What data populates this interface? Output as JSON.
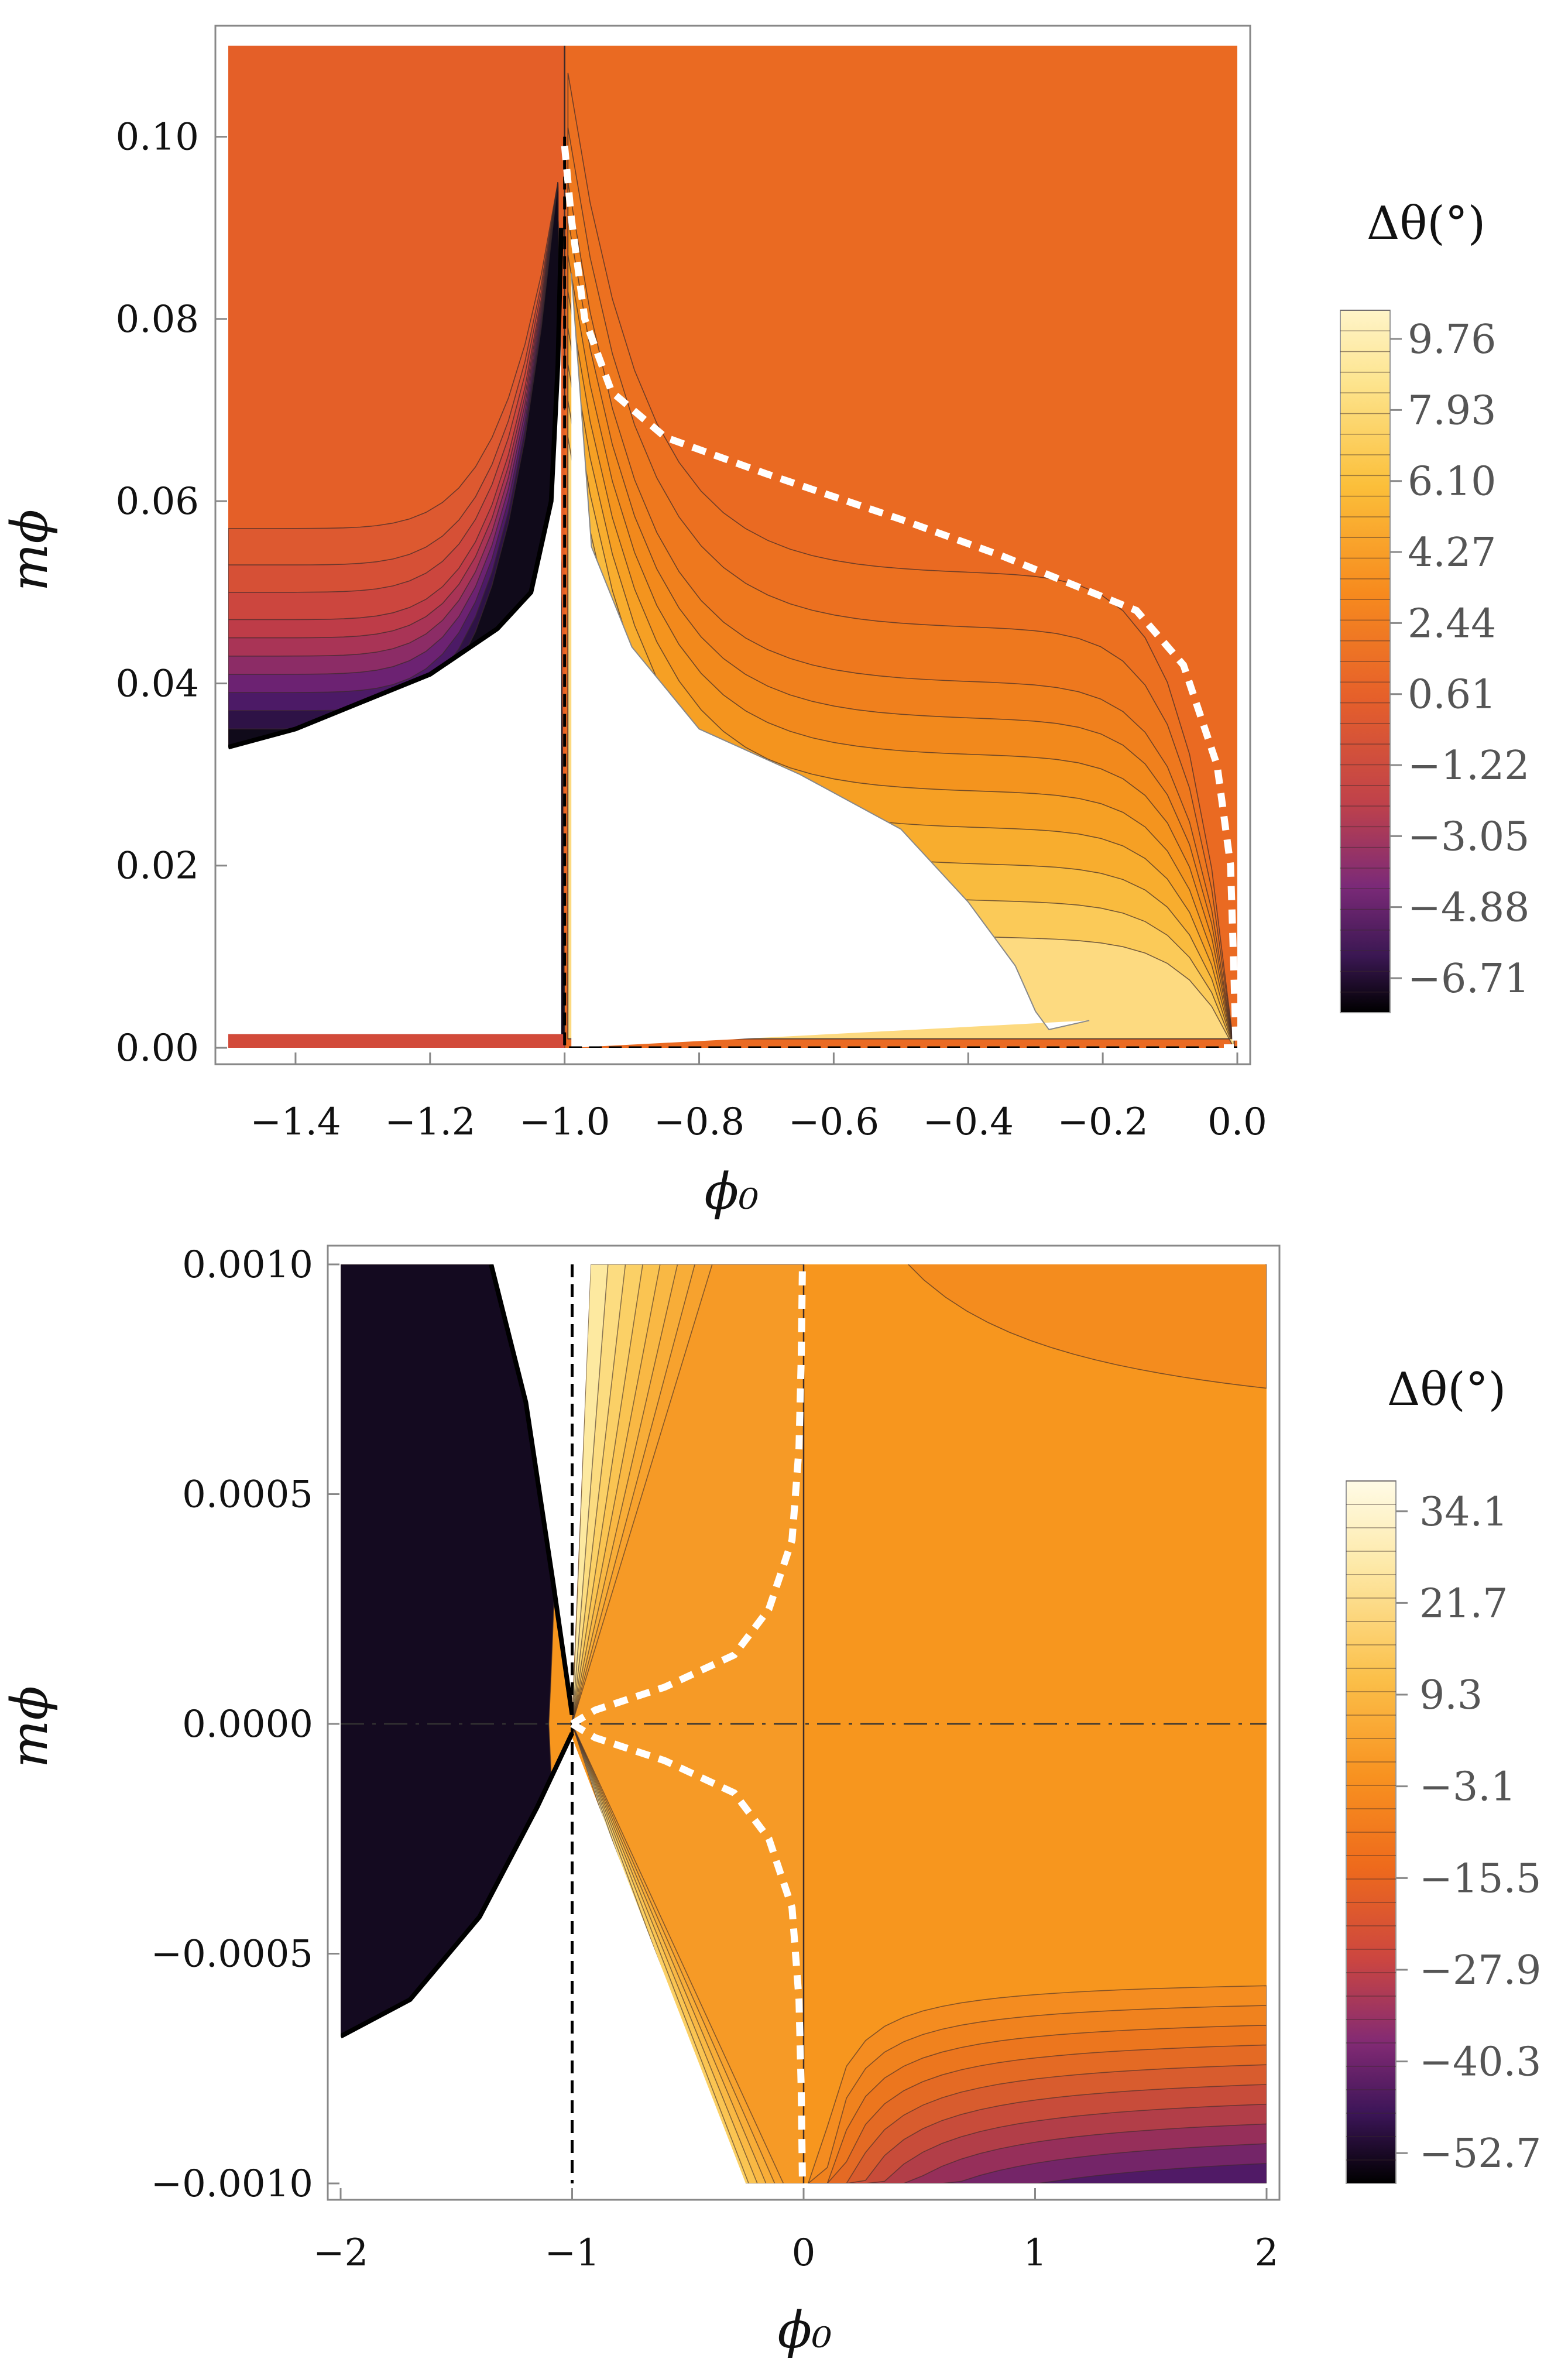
{
  "chart_data": [
    {
      "type": "contour",
      "title": "",
      "xlabel": "ϕ₀",
      "ylabel": "mϕ",
      "xlim": [
        -1.5,
        0.0
      ],
      "ylim": [
        0.0,
        0.11
      ],
      "xticks": [
        -1.4,
        -1.2,
        -1.0,
        -0.8,
        -0.6,
        -0.4,
        -0.2,
        0.0
      ],
      "xtick_labels": [
        "−1.4",
        "−1.2",
        "−1.0",
        "−0.8",
        "−0.6",
        "−0.4",
        "−0.2",
        "0.0"
      ],
      "yticks": [
        0.0,
        0.02,
        0.04,
        0.06,
        0.08,
        0.1
      ],
      "ytick_labels": [
        "0.00",
        "0.02",
        "0.04",
        "0.06",
        "0.08",
        "0.10"
      ],
      "colorbar": {
        "title": "Δθ(°)",
        "range": [
          -7.6,
          10.5
        ],
        "ticks": [
          9.76,
          7.93,
          6.1,
          4.27,
          2.44,
          0.61,
          -1.22,
          -3.05,
          -4.88,
          -6.71
        ],
        "tick_labels": [
          "9.76",
          "7.93",
          "6.10",
          "4.27",
          "2.44",
          "0.61",
          "−1.22",
          "−3.05",
          "−4.88",
          "−6.71"
        ]
      },
      "white_dashed_curve": [
        [
          -1.0,
          0.099
        ],
        [
          -0.99,
          0.091
        ],
        [
          -0.97,
          0.08
        ],
        [
          -0.93,
          0.072
        ],
        [
          -0.85,
          0.067
        ],
        [
          -0.7,
          0.063
        ],
        [
          -0.5,
          0.058
        ],
        [
          -0.35,
          0.054
        ],
        [
          -0.25,
          0.051
        ],
        [
          -0.15,
          0.048
        ],
        [
          -0.08,
          0.042
        ],
        [
          -0.03,
          0.031
        ],
        [
          -0.01,
          0.02
        ],
        [
          -0.005,
          0.008
        ],
        [
          -0.002,
          0.0
        ],
        [
          -0.02,
          0.0
        ]
      ],
      "black_dashed_line": [
        [
          -1.0,
          0.1
        ],
        [
          -1.0,
          0.0
        ],
        [
          0.0,
          0.0
        ]
      ],
      "white_region_boundary": [
        [
          -0.99,
          0.085
        ],
        [
          -0.96,
          0.055
        ],
        [
          -0.9,
          0.044
        ],
        [
          -0.8,
          0.035
        ],
        [
          -0.65,
          0.03
        ],
        [
          -0.5,
          0.024
        ],
        [
          -0.4,
          0.016
        ],
        [
          -0.33,
          0.009
        ],
        [
          -0.3,
          0.004
        ],
        [
          -0.28,
          0.002
        ],
        [
          -0.22,
          0.003
        ],
        [
          -0.99,
          0.0
        ]
      ],
      "left_white_boundary": [
        [
          -1.5,
          0.033
        ],
        [
          -1.4,
          0.035
        ],
        [
          -1.3,
          0.038
        ],
        [
          -1.2,
          0.041
        ],
        [
          -1.1,
          0.046
        ],
        [
          -1.05,
          0.05
        ],
        [
          -1.02,
          0.06
        ],
        [
          -1.01,
          0.075
        ],
        [
          -1.005,
          0.09
        ]
      ],
      "levels_upper_left": [
        0.057,
        0.053,
        0.05,
        0.047,
        0.045,
        0.043,
        0.041,
        0.039,
        0.037,
        0.035
      ],
      "levels_right": [
        0.012,
        0.016,
        0.02,
        0.024,
        0.028,
        0.032,
        0.036,
        0.04,
        0.046,
        0.052
      ]
    },
    {
      "type": "contour",
      "title": "",
      "xlabel": "ϕ₀",
      "ylabel": "mϕ",
      "xlim": [
        -2.0,
        2.0
      ],
      "ylim": [
        -0.001,
        0.001
      ],
      "xticks": [
        -2,
        -1,
        0,
        1,
        2
      ],
      "xtick_labels": [
        "−2",
        "−1",
        "0",
        "1",
        "2"
      ],
      "yticks": [
        -0.001,
        -0.0005,
        0.0,
        0.0005,
        0.001
      ],
      "ytick_labels": [
        "−0.0010",
        "−0.0005",
        "0.0000",
        "0.0005",
        "0.0010"
      ],
      "colorbar": {
        "title": "Δθ(°)",
        "range": [
          -56.8,
          38.2
        ],
        "ticks": [
          34.1,
          21.7,
          9.3,
          -3.1,
          -15.5,
          -27.9,
          -40.3,
          -52.7
        ],
        "tick_labels": [
          "34.1",
          "21.7",
          "9.3",
          "−3.1",
          "−15.5",
          "−27.9",
          "−40.3",
          "−52.7"
        ]
      },
      "white_dashed_curve_upper": [
        [
          -1.0,
          0.0
        ],
        [
          -0.9,
          3e-05
        ],
        [
          -0.6,
          8e-05
        ],
        [
          -0.3,
          0.00015
        ],
        [
          -0.15,
          0.00025
        ],
        [
          -0.05,
          0.0004
        ],
        [
          -0.02,
          0.0006
        ],
        [
          -0.01,
          0.0008
        ],
        [
          -0.005,
          0.001
        ]
      ],
      "white_dashed_curve_lower": [
        [
          -1.0,
          0.0
        ],
        [
          -0.9,
          -3e-05
        ],
        [
          -0.6,
          -8e-05
        ],
        [
          -0.3,
          -0.00015
        ],
        [
          -0.15,
          -0.00025
        ],
        [
          -0.05,
          -0.0004
        ],
        [
          -0.02,
          -0.0006
        ],
        [
          -0.01,
          -0.0008
        ],
        [
          -0.005,
          -0.001
        ]
      ],
      "black_dashed_line": [
        [
          -1.0,
          0.001
        ],
        [
          -1.0,
          -0.001
        ]
      ],
      "horizontal_dashdot_y": 0.0
    }
  ]
}
